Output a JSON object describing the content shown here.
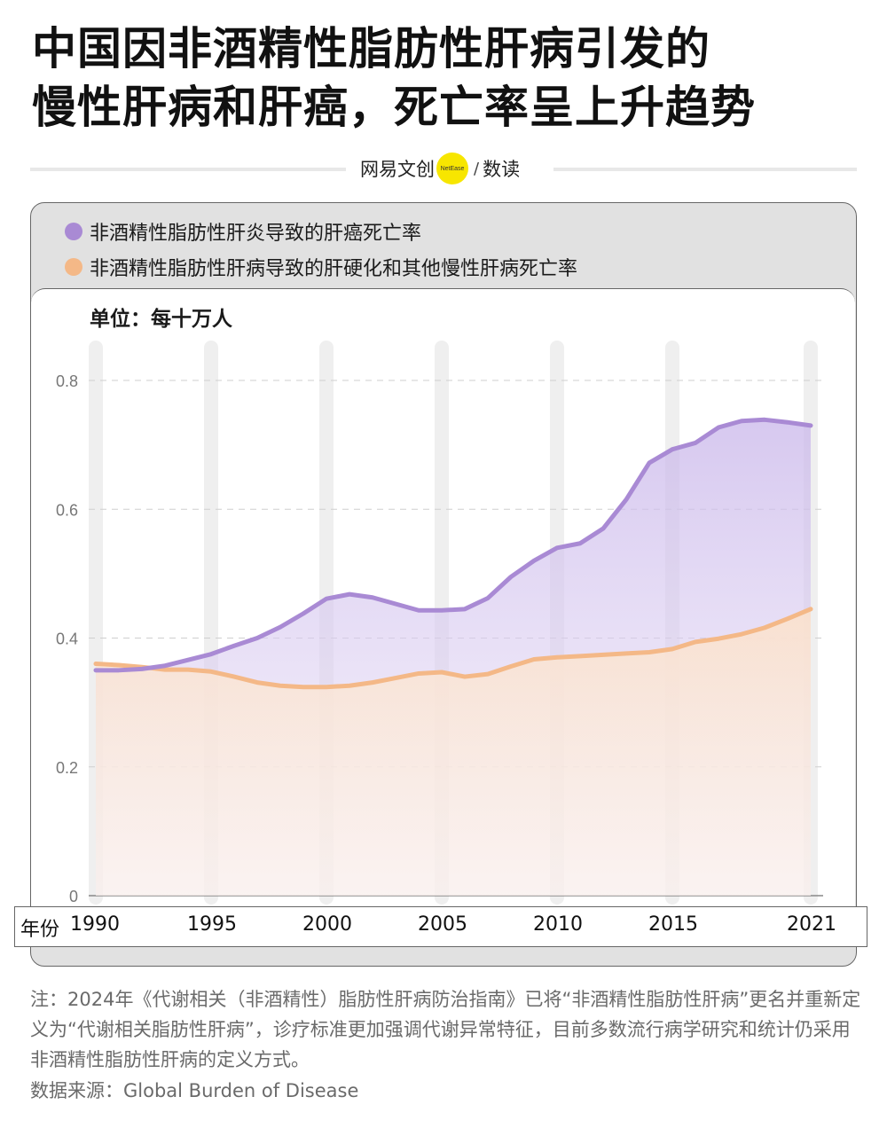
{
  "title_line1": "中国因非酒精性脂肪性肝病引发的",
  "title_line2": "慢性肝病和肝癌，死亡率呈上升趋势",
  "brand": {
    "name": "网易文创",
    "logo_text": "NetEase",
    "slash": "/",
    "section": "数读",
    "logo_color": "#f7e600"
  },
  "unit_label": "单位：每十万人",
  "x_axis_prefix": "年份",
  "note": "注：2024年《代谢相关（非酒精性）脂肪性肝病防治指南》已将“非酒精性脂肪性肝病”更名并重新定义为“代谢相关脂肪性肝病”，诊疗标准更加强调代谢异常特征，目前多数流行病学研究和统计仍采用非酒精性脂肪性肝病的定义方式。",
  "source": "数据来源：Global Burden of Disease",
  "chart_data": {
    "type": "area",
    "x": [
      1990,
      1991,
      1992,
      1993,
      1994,
      1995,
      1996,
      1997,
      1998,
      1999,
      2000,
      2001,
      2002,
      2003,
      2004,
      2005,
      2006,
      2007,
      2008,
      2009,
      2010,
      2011,
      2012,
      2013,
      2014,
      2015,
      2016,
      2017,
      2018,
      2019,
      2020,
      2021
    ],
    "x_ticks": [
      "1990",
      "1995",
      "2000",
      "2005",
      "2010",
      "2015",
      "2021"
    ],
    "y_ticks": [
      "0",
      "0.2",
      "0.4",
      "0.6",
      "0.8"
    ],
    "ylim": [
      0,
      0.8
    ],
    "grid": true,
    "legend_position": "top-left",
    "series": [
      {
        "name": "非酒精性脂肪性肝炎导致的肝癌死亡率",
        "color": "#a98ad4",
        "values": [
          0.35,
          0.35,
          0.352,
          0.357,
          0.366,
          0.375,
          0.388,
          0.4,
          0.417,
          0.438,
          0.461,
          0.468,
          0.463,
          0.453,
          0.443,
          0.443,
          0.445,
          0.462,
          0.495,
          0.52,
          0.54,
          0.547,
          0.57,
          0.615,
          0.672,
          0.693,
          0.703,
          0.727,
          0.737,
          0.739,
          0.735,
          0.73
        ]
      },
      {
        "name": "非酒精性脂肪性肝病导致的肝硬化和其他慢性肝病死亡率",
        "color": "#f4b887",
        "values": [
          0.36,
          0.358,
          0.355,
          0.351,
          0.351,
          0.348,
          0.34,
          0.331,
          0.326,
          0.324,
          0.324,
          0.326,
          0.331,
          0.338,
          0.345,
          0.347,
          0.34,
          0.344,
          0.356,
          0.367,
          0.37,
          0.372,
          0.374,
          0.376,
          0.378,
          0.383,
          0.394,
          0.399,
          0.406,
          0.416,
          0.43,
          0.445
        ]
      }
    ]
  }
}
